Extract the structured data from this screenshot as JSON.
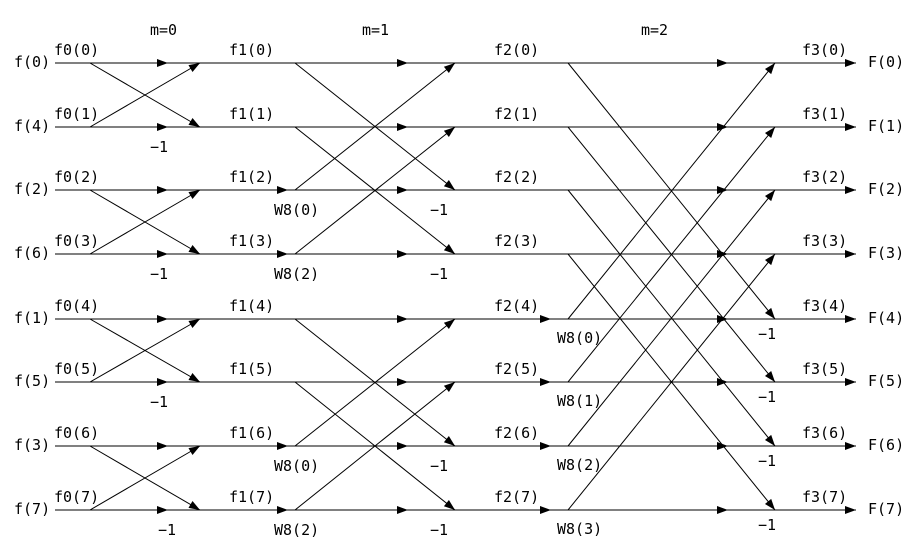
{
  "stages": [
    "m=0",
    "m=1",
    "m=2"
  ],
  "inputs": [
    "f(0)",
    "f(4)",
    "f(2)",
    "f(6)",
    "f(1)",
    "f(5)",
    "f(3)",
    "f(7)"
  ],
  "outputs": [
    "F(0)",
    "F(1)",
    "F(2)",
    "F(3)",
    "F(4)",
    "F(5)",
    "F(6)",
    "F(7)"
  ],
  "f0": [
    "f0(0)",
    "f0(1)",
    "f0(2)",
    "f0(3)",
    "f0(4)",
    "f0(5)",
    "f0(6)",
    "f0(7)"
  ],
  "f1": [
    "f1(0)",
    "f1(1)",
    "f1(2)",
    "f1(3)",
    "f1(4)",
    "f1(5)",
    "f1(6)",
    "f1(7)"
  ],
  "f2": [
    "f2(0)",
    "f2(1)",
    "f2(2)",
    "f2(3)",
    "f2(4)",
    "f2(5)",
    "f2(6)",
    "f2(7)"
  ],
  "f3": [
    "f3(0)",
    "f3(1)",
    "f3(2)",
    "f3(3)",
    "f3(4)",
    "f3(5)",
    "f3(6)",
    "f3(7)"
  ],
  "twiddles_stage1": [
    "W8(0)",
    "W8(2)",
    "W8(0)",
    "W8(2)"
  ],
  "twiddles_stage2": [
    "W8(0)",
    "W8(1)",
    "W8(2)",
    "W8(3)"
  ],
  "minus_one": "−1",
  "colors": {
    "line": "#000000",
    "text": "#000000",
    "background": "#ffffff"
  }
}
